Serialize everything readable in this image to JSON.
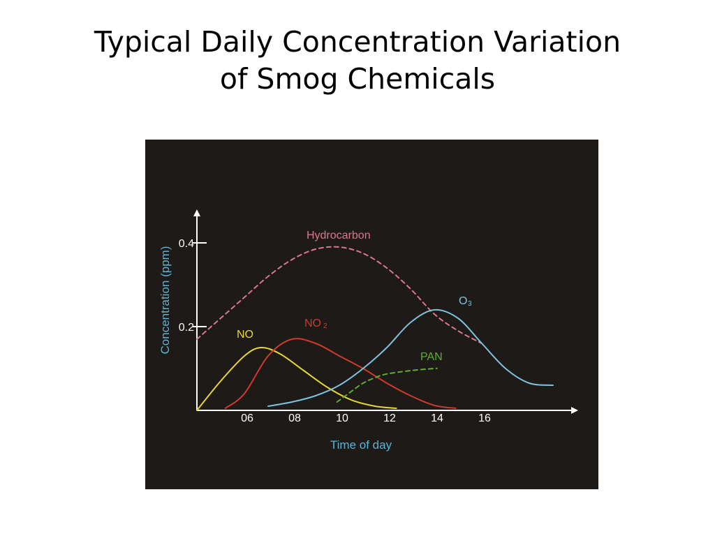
{
  "title": {
    "line1": "Typical Daily Concentration Variation",
    "line2": "of Smog Chemicals"
  },
  "colors": {
    "background": "#1e1a18",
    "axis": "#ffffff",
    "axis_label": "#5bb3d6",
    "hydrocarbon": "#d9788f",
    "no": "#e6d833",
    "no2": "#d03a2c",
    "o3": "#7ec3df",
    "pan": "#5fae2f"
  },
  "chart_data": {
    "type": "line",
    "xlabel": "Time of day",
    "ylabel": "Concentration (ppm)",
    "xlim": [
      4,
      20
    ],
    "ylim": [
      0,
      0.5
    ],
    "x_ticks": [
      "06",
      "08",
      "10",
      "12",
      "14",
      "16"
    ],
    "x_tick_values": [
      6,
      8,
      10,
      12,
      14,
      16
    ],
    "y_ticks": [
      "0.2",
      "0.4"
    ],
    "y_tick_values": [
      0.2,
      0.4
    ],
    "series": [
      {
        "name": "Hydrocarbon",
        "style": "dashed",
        "color_key": "hydrocarbon",
        "x": [
          4.0,
          5.0,
          6.0,
          7.0,
          8.0,
          9.0,
          10.0,
          11.0,
          12.0,
          13.0,
          14.0,
          15.0,
          16.0
        ],
        "y": [
          0.17,
          0.22,
          0.27,
          0.32,
          0.36,
          0.385,
          0.39,
          0.375,
          0.34,
          0.29,
          0.23,
          0.19,
          0.16
        ]
      },
      {
        "name": "NO",
        "style": "solid",
        "color_key": "no",
        "x": [
          4.0,
          5.0,
          6.0,
          6.7,
          7.5,
          8.5,
          9.5,
          10.5,
          11.5,
          12.4
        ],
        "y": [
          0.0,
          0.07,
          0.13,
          0.15,
          0.135,
          0.095,
          0.055,
          0.025,
          0.01,
          0.005
        ]
      },
      {
        "name": "NO2",
        "style": "solid",
        "color_key": "no2",
        "x": [
          5.2,
          6.0,
          7.0,
          8.0,
          9.0,
          10.0,
          11.0,
          12.0,
          13.0,
          14.0,
          14.9
        ],
        "y": [
          0.005,
          0.04,
          0.13,
          0.17,
          0.16,
          0.13,
          0.1,
          0.065,
          0.035,
          0.012,
          0.005
        ]
      },
      {
        "name": "O3",
        "style": "solid",
        "color_key": "o3",
        "x": [
          7.0,
          8.0,
          9.0,
          10.0,
          11.0,
          12.0,
          13.0,
          14.0,
          15.0,
          16.0,
          17.0,
          18.0,
          19.0
        ],
        "y": [
          0.01,
          0.02,
          0.035,
          0.06,
          0.1,
          0.15,
          0.21,
          0.24,
          0.22,
          0.16,
          0.1,
          0.065,
          0.06
        ]
      },
      {
        "name": "PAN",
        "style": "dashed",
        "color_key": "pan",
        "x": [
          9.9,
          10.5,
          11.0,
          11.5,
          12.0,
          13.0,
          14.0,
          14.1
        ],
        "y": [
          0.02,
          0.045,
          0.065,
          0.078,
          0.087,
          0.095,
          0.1,
          0.1
        ]
      }
    ],
    "labels": [
      "Hydrocarbon",
      "NO",
      "NO",
      "2",
      "O",
      "3",
      "PAN"
    ],
    "grid": false,
    "legend": "inline labels"
  }
}
